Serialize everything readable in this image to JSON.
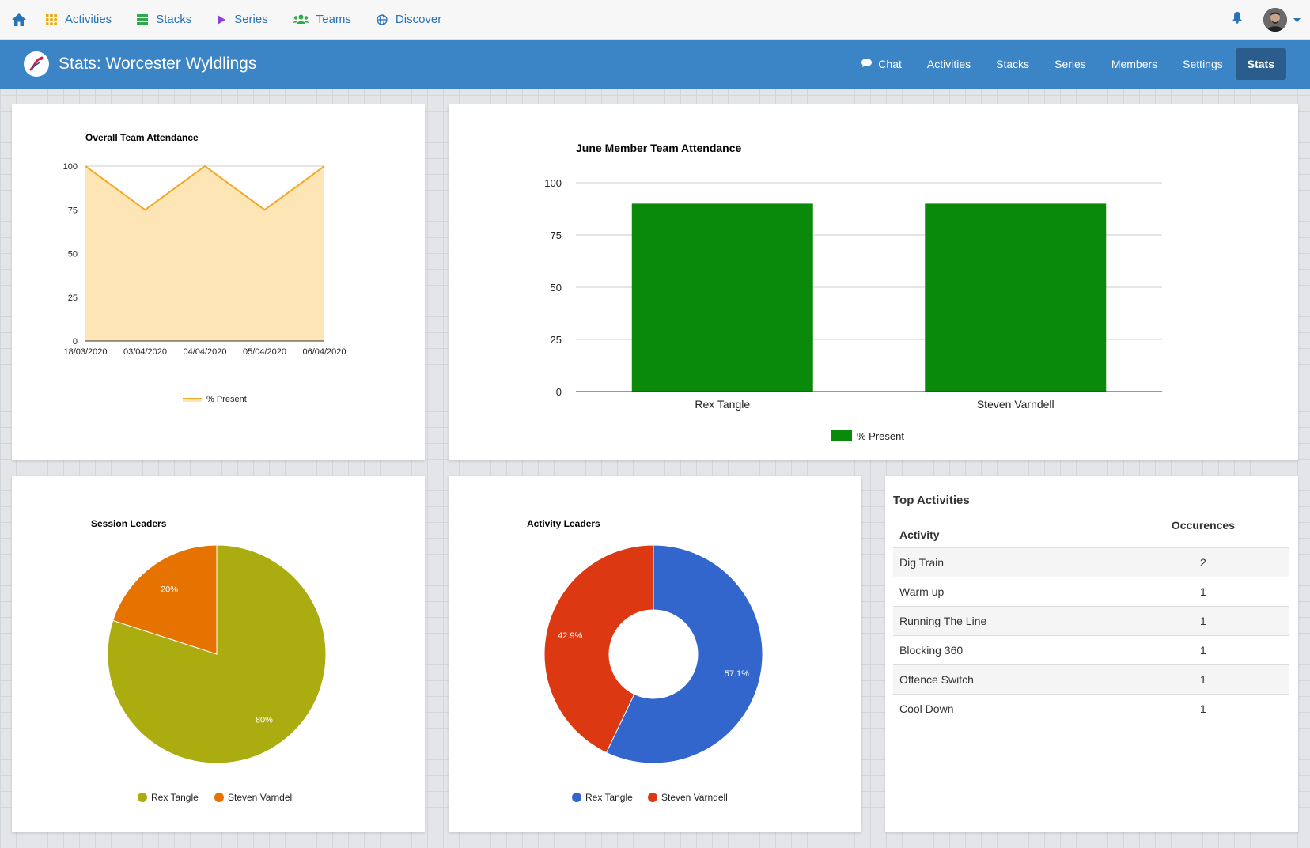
{
  "topnav": {
    "items": [
      {
        "label": "Activities",
        "icon": "grid-icon"
      },
      {
        "label": "Stacks",
        "icon": "list-icon"
      },
      {
        "label": "Series",
        "icon": "play-icon"
      },
      {
        "label": "Teams",
        "icon": "users-icon"
      },
      {
        "label": "Discover",
        "icon": "globe-icon"
      }
    ]
  },
  "header": {
    "title": "Stats: Worcester Wyldlings",
    "nav": [
      {
        "label": "Chat",
        "icon": "chat-icon"
      },
      {
        "label": "Activities"
      },
      {
        "label": "Stacks"
      },
      {
        "label": "Series"
      },
      {
        "label": "Members"
      },
      {
        "label": "Settings"
      },
      {
        "label": "Stats",
        "active": true
      }
    ]
  },
  "colors": {
    "accent": "#3b85c6",
    "area_line": "#f5a623",
    "area_fill": "#fde5b5",
    "bar": "#0a8a0a",
    "olive": "#aaac10",
    "orange": "#e67300",
    "blue": "#3366cc",
    "red": "#dc3912"
  },
  "chart_data": [
    {
      "type": "area",
      "title": "Overall Team Attendance",
      "categories": [
        "18/03/2020",
        "03/04/2020",
        "04/04/2020",
        "05/04/2020",
        "06/04/2020"
      ],
      "series": [
        {
          "name": "% Present",
          "values": [
            100,
            75,
            100,
            75,
            100
          ]
        }
      ],
      "ylim": [
        0,
        100
      ],
      "yticks": [
        0,
        25,
        50,
        75,
        100
      ],
      "legend": "bottom"
    },
    {
      "type": "bar",
      "title": "June Member Team Attendance",
      "categories": [
        "Rex Tangle",
        "Steven Varndell"
      ],
      "series": [
        {
          "name": "% Present",
          "values": [
            90,
            90
          ]
        }
      ],
      "ylim": [
        0,
        100
      ],
      "yticks": [
        0,
        25,
        50,
        75,
        100
      ],
      "legend": "bottom"
    },
    {
      "type": "pie",
      "title": "Session Leaders",
      "labels": [
        "Rex Tangle",
        "Steven Varndell"
      ],
      "values": [
        80,
        20
      ],
      "value_labels": [
        "80%",
        "20%"
      ],
      "legend": "bottom"
    },
    {
      "type": "pie",
      "donut": true,
      "title": "Activity Leaders",
      "labels": [
        "Rex Tangle",
        "Steven Varndell"
      ],
      "values": [
        57.1,
        42.9
      ],
      "value_labels": [
        "57.1%",
        "42.9%"
      ],
      "legend": "bottom"
    }
  ],
  "top_activities": {
    "title": "Top Activities",
    "columns": [
      "Activity",
      "Occurences"
    ],
    "rows": [
      [
        "Dig Train",
        "2"
      ],
      [
        "Warm up",
        "1"
      ],
      [
        "Running The Line",
        "1"
      ],
      [
        "Blocking 360",
        "1"
      ],
      [
        "Offence Switch",
        "1"
      ],
      [
        "Cool Down",
        "1"
      ]
    ]
  }
}
